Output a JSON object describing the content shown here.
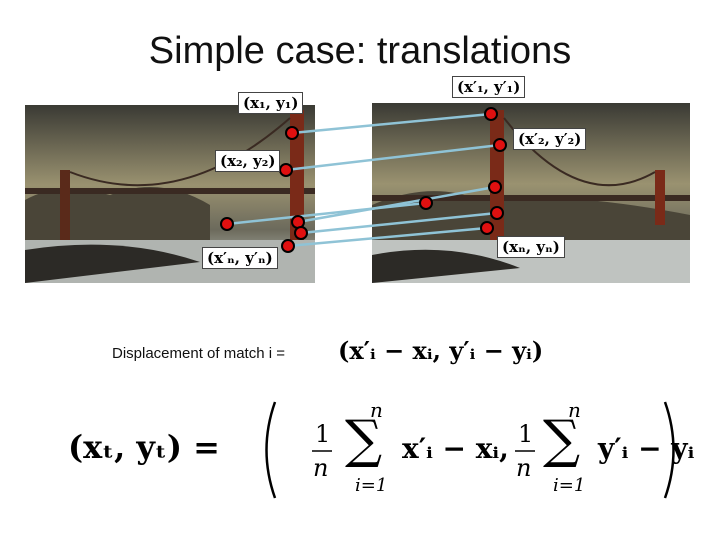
{
  "title": "Simple case: translations",
  "point_labels": [
    "(x₁, y₁)",
    "(x′₁, y′₁)",
    "(x₂, y₂)",
    "(x′₂, y′₂)",
    "(x′ₙ, y′ₙ)",
    "(xₙ, yₙ)"
  ],
  "displacement": {
    "text": "Displacement of match i =",
    "formula": "(x′ᵢ − xᵢ, y′ᵢ − yᵢ)"
  },
  "formula": {
    "lhs": "(xₜ, yₜ) =",
    "terms": [
      {
        "numerator": "1",
        "denominator": "n",
        "symbol": "∑",
        "upper": "n",
        "lower": "i=1",
        "body": "x′ᵢ − xᵢ,"
      },
      {
        "numerator": "1",
        "denominator": "n",
        "symbol": "∑",
        "upper": "n",
        "lower": "i=1",
        "body": "y′ᵢ − yᵢ"
      }
    ]
  }
}
